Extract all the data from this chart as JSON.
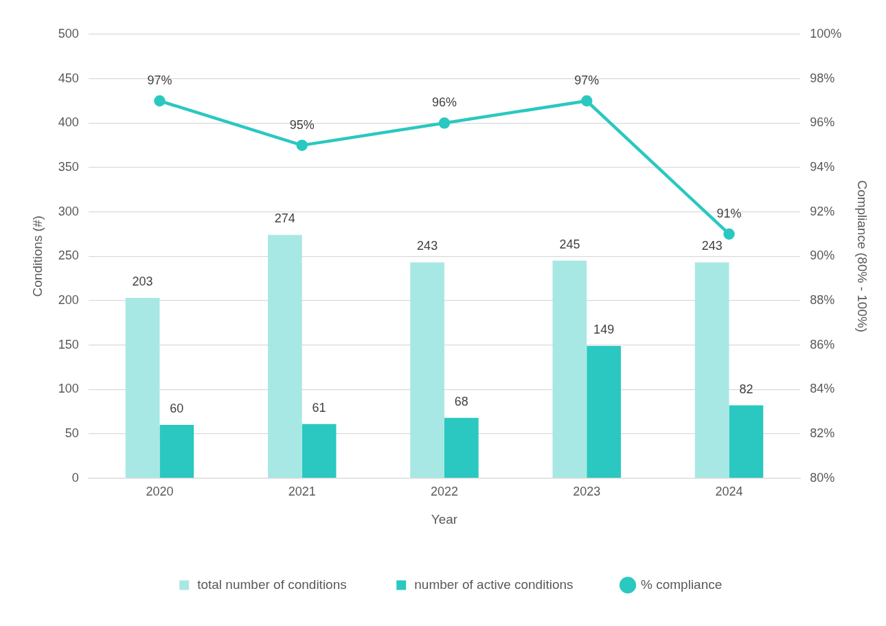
{
  "chart_data": {
    "type": "bar",
    "xlabel": "Year",
    "ylabel": "Conditions (#)",
    "y2label": "Compliance (80% - 100%)",
    "categories": [
      "2020",
      "2021",
      "2022",
      "2023",
      "2024"
    ],
    "series": [
      {
        "name": "total number of conditions",
        "color": "#a8e8e4",
        "values": [
          203,
          274,
          243,
          245,
          243
        ],
        "value_labels": [
          "203",
          "274",
          "243",
          "245",
          "243"
        ]
      },
      {
        "name": "number of active conditions",
        "color": "#2ac8c0",
        "values": [
          60,
          61,
          68,
          149,
          82
        ],
        "value_labels": [
          "60",
          "61",
          "68",
          "149",
          "82"
        ]
      },
      {
        "name": "% compliance",
        "type": "line",
        "axis": "y2",
        "color": "#2ac8c0",
        "values": [
          97,
          95,
          96,
          97,
          91
        ],
        "value_labels": [
          "97%",
          "95%",
          "96%",
          "97%",
          "91%"
        ]
      }
    ],
    "ylim": [
      0,
      500
    ],
    "yticks": [
      0,
      50,
      100,
      150,
      200,
      250,
      300,
      350,
      400,
      450,
      500
    ],
    "y2lim": [
      80,
      100
    ],
    "y2ticks": [
      {
        "value": 80,
        "label": "80%"
      },
      {
        "value": 82,
        "label": "82%"
      },
      {
        "value": 84,
        "label": "84%"
      },
      {
        "value": 86,
        "label": "86%"
      },
      {
        "value": 88,
        "label": "88%"
      },
      {
        "value": 90,
        "label": "90%"
      },
      {
        "value": 92,
        "label": "92%"
      },
      {
        "value": 94,
        "label": "94%"
      },
      {
        "value": 96,
        "label": "96%"
      },
      {
        "value": 98,
        "label": "98%"
      },
      {
        "value": 100,
        "label": "100%"
      }
    ],
    "grid": "y",
    "legend": "bottom",
    "marker": "circle",
    "line_style": "solid"
  }
}
